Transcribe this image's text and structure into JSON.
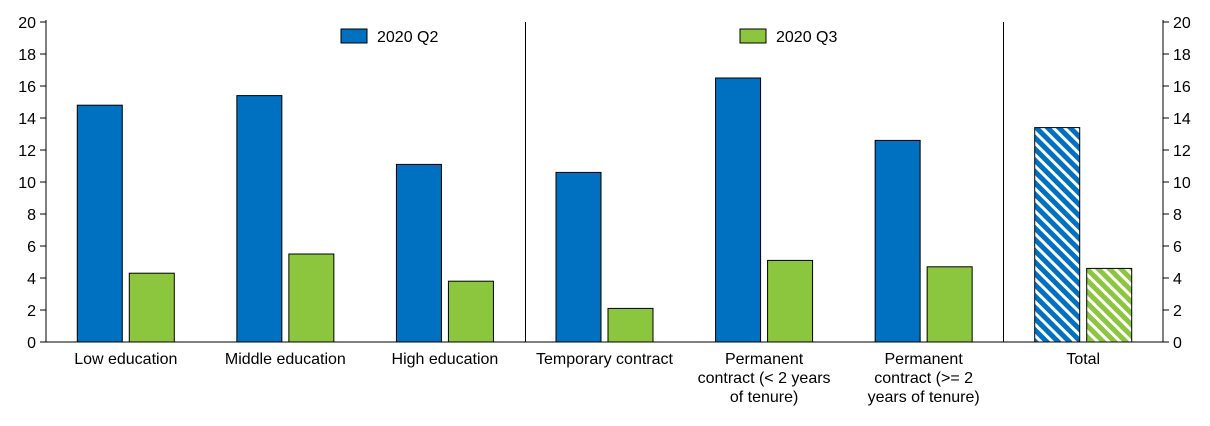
{
  "chart_data": {
    "type": "bar",
    "categories": [
      [
        "Low education"
      ],
      [
        "Middle education"
      ],
      [
        "High education"
      ],
      [
        "Temporary contract"
      ],
      [
        "Permanent",
        "contract (< 2 years",
        "of tenure)"
      ],
      [
        "Permanent",
        "contract (>= 2",
        "years of tenure)"
      ],
      [
        "Total"
      ]
    ],
    "series": [
      {
        "name": "2020 Q2",
        "values": [
          14.8,
          15.4,
          11.1,
          10.6,
          16.5,
          12.6,
          13.4
        ],
        "color": "#0070C0"
      },
      {
        "name": "2020 Q3",
        "values": [
          4.3,
          5.5,
          3.8,
          2.1,
          5.1,
          4.7,
          4.6
        ],
        "color": "#8CC63F"
      }
    ],
    "hatched_categories": [
      "Total"
    ],
    "ylim": [
      0,
      20
    ],
    "yticks": [
      "0",
      "2",
      "4",
      "6",
      "8",
      "10",
      "12",
      "14",
      "16",
      "18",
      "20"
    ],
    "secondary_axis": true,
    "group_separators_after": [
      2,
      5
    ],
    "legend_placement": "top"
  }
}
